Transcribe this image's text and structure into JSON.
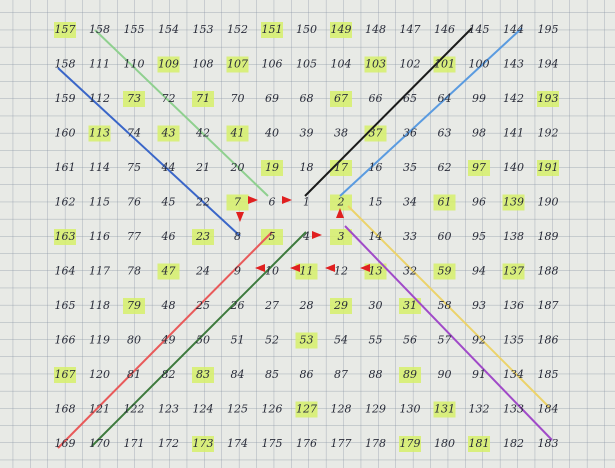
{
  "grid": {
    "rows": [
      [
        157,
        158,
        155,
        154,
        153,
        152,
        151,
        150,
        149,
        148,
        147,
        146,
        145,
        144,
        195
      ],
      [
        158,
        111,
        110,
        109,
        108,
        107,
        106,
        105,
        104,
        103,
        102,
        101,
        100,
        143,
        194
      ],
      [
        159,
        112,
        73,
        72,
        71,
        70,
        69,
        68,
        67,
        66,
        65,
        64,
        99,
        142,
        193
      ],
      [
        160,
        113,
        74,
        43,
        42,
        41,
        40,
        39,
        38,
        37,
        36,
        63,
        98,
        141,
        192
      ],
      [
        161,
        114,
        75,
        44,
        21,
        20,
        19,
        18,
        17,
        16,
        35,
        62,
        97,
        140,
        191
      ],
      [
        162,
        115,
        76,
        45,
        22,
        7,
        6,
        1,
        2,
        15,
        34,
        61,
        96,
        139,
        190
      ],
      [
        163,
        116,
        77,
        46,
        23,
        8,
        5,
        4,
        3,
        14,
        33,
        60,
        95,
        138,
        189
      ],
      [
        164,
        117,
        78,
        47,
        24,
        9,
        10,
        11,
        12,
        13,
        32,
        59,
        94,
        137,
        188
      ],
      [
        165,
        118,
        79,
        48,
        25,
        26,
        27,
        28,
        29,
        30,
        31,
        58,
        93,
        136,
        187
      ],
      [
        166,
        119,
        80,
        49,
        50,
        51,
        52,
        53,
        54,
        55,
        56,
        57,
        92,
        135,
        186
      ],
      [
        167,
        120,
        81,
        82,
        83,
        84,
        85,
        86,
        87,
        88,
        89,
        90,
        91,
        134,
        185
      ],
      [
        168,
        121,
        122,
        123,
        124,
        125,
        126,
        127,
        128,
        129,
        130,
        131,
        132,
        133,
        184
      ],
      [
        169,
        170,
        171,
        172,
        173,
        174,
        175,
        176,
        177,
        178,
        179,
        180,
        181,
        182,
        183
      ]
    ]
  }
}
